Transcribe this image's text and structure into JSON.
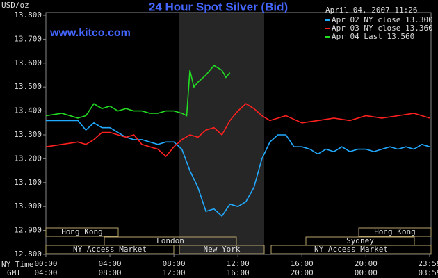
{
  "chart_data": {
    "type": "line",
    "title": "24 Hour Spot Silver (Bid)",
    "y_label": "USD/oz",
    "watermark": "www.kitco.com",
    "timestamp": "April 04, 2007 11:26",
    "x_row_labels": [
      "NY Time",
      "GMT"
    ],
    "xlim": [
      0,
      23.983
    ],
    "xticks": [
      {
        "value": 0,
        "label": "00:00"
      },
      {
        "value": 4,
        "label": "04:00"
      },
      {
        "value": 8,
        "label": "08:00"
      },
      {
        "value": 12,
        "label": "12:00"
      },
      {
        "value": 16,
        "label": "16:00"
      },
      {
        "value": 20,
        "label": "20:00"
      },
      {
        "value": 23.983,
        "label": "23:59"
      }
    ],
    "gmt_ticks": [
      {
        "value": 0,
        "label": "04:00"
      },
      {
        "value": 4,
        "label": "08:00"
      },
      {
        "value": 8,
        "label": "12:00"
      },
      {
        "value": 12,
        "label": "16:00"
      },
      {
        "value": 16,
        "label": "20:00"
      },
      {
        "value": 20,
        "label": "00:00"
      },
      {
        "value": 23.983,
        "label": "03:59"
      }
    ],
    "ylim": [
      12.8,
      13.8
    ],
    "yticks": [
      {
        "value": 12.8,
        "label": "12.800"
      },
      {
        "value": 12.9,
        "label": "12.900"
      },
      {
        "value": 13.0,
        "label": "13.000"
      },
      {
        "value": 13.1,
        "label": "13.100"
      },
      {
        "value": 13.2,
        "label": "13.200"
      },
      {
        "value": 13.3,
        "label": "13.300"
      },
      {
        "value": 13.4,
        "label": "13.400"
      },
      {
        "value": 13.5,
        "label": "13.500"
      },
      {
        "value": 13.6,
        "label": "13.600"
      },
      {
        "value": 13.7,
        "label": "13.700"
      },
      {
        "value": 13.8,
        "label": "13.800"
      }
    ],
    "grid": false,
    "sessions": [
      "Hong Kong",
      "Hong Kong",
      "London",
      "Sydney",
      "NY Access Market",
      "New York",
      "NY Access Market"
    ],
    "series": [
      {
        "name": "Apr 02 NY close 13.300",
        "color": "#22aaff",
        "x": [
          0,
          1,
          2,
          2.5,
          3,
          3.5,
          4,
          4.5,
          5,
          5.5,
          6,
          6.5,
          7,
          7.5,
          8,
          8.5,
          9,
          9.5,
          10,
          10.5,
          11,
          11.5,
          12,
          12.5,
          13,
          13.5,
          14,
          14.5,
          15,
          15.5,
          16,
          16.5,
          17,
          17.5,
          18,
          18.5,
          19,
          19.5,
          20,
          20.5,
          21,
          21.5,
          22,
          22.5,
          23,
          23.5,
          23.983
        ],
        "values": [
          13.36,
          13.36,
          13.36,
          13.32,
          13.35,
          13.33,
          13.33,
          13.31,
          13.29,
          13.28,
          13.28,
          13.27,
          13.26,
          13.27,
          13.27,
          13.24,
          13.15,
          13.08,
          12.98,
          12.99,
          12.96,
          13.01,
          13.0,
          13.02,
          13.08,
          13.2,
          13.27,
          13.3,
          13.3,
          13.25,
          13.25,
          13.24,
          13.22,
          13.24,
          13.23,
          13.25,
          13.23,
          13.24,
          13.24,
          13.23,
          13.24,
          13.25,
          13.24,
          13.25,
          13.24,
          13.26,
          13.25
        ]
      },
      {
        "name": "Apr 03 NY close 13.360",
        "color": "#ff2020",
        "x": [
          0,
          1,
          2,
          2.5,
          3,
          3.5,
          4,
          4.5,
          5,
          5.5,
          6,
          6.5,
          7,
          7.5,
          8,
          8.5,
          9,
          9.5,
          10,
          10.5,
          11,
          11.5,
          12,
          12.5,
          13,
          13.5,
          14,
          15,
          16,
          17,
          18,
          19,
          20,
          21,
          22,
          23,
          23.983
        ],
        "values": [
          13.25,
          13.26,
          13.27,
          13.26,
          13.28,
          13.31,
          13.31,
          13.3,
          13.29,
          13.3,
          13.26,
          13.25,
          13.24,
          13.21,
          13.25,
          13.28,
          13.3,
          13.29,
          13.32,
          13.33,
          13.3,
          13.36,
          13.4,
          13.43,
          13.41,
          13.38,
          13.36,
          13.38,
          13.35,
          13.36,
          13.37,
          13.36,
          13.38,
          13.37,
          13.38,
          13.39,
          13.37
        ]
      },
      {
        "name": "Apr 04 Last 13.560",
        "color": "#22dd22",
        "x": [
          0,
          1,
          2,
          2.5,
          3,
          3.5,
          4,
          4.5,
          5,
          5.5,
          6,
          6.5,
          7,
          7.5,
          8,
          8.5,
          8.8,
          9,
          9.25,
          9.5,
          10,
          10.5,
          11,
          11.25,
          11.5
        ],
        "values": [
          13.38,
          13.39,
          13.37,
          13.38,
          13.43,
          13.41,
          13.42,
          13.4,
          13.41,
          13.4,
          13.4,
          13.39,
          13.39,
          13.4,
          13.4,
          13.39,
          13.38,
          13.57,
          13.5,
          13.52,
          13.55,
          13.59,
          13.57,
          13.54,
          13.56
        ]
      }
    ]
  }
}
